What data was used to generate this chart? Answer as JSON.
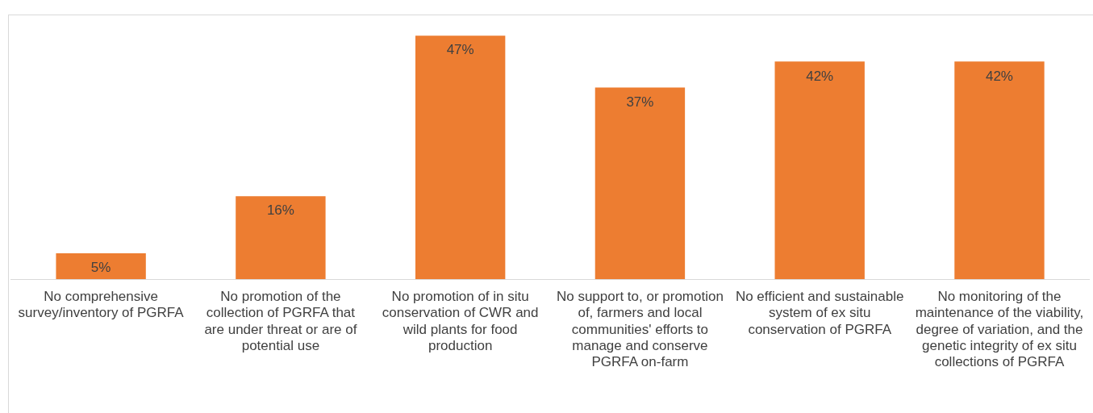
{
  "chart_data": {
    "type": "bar",
    "categories": [
      "No comprehensive survey/inventory of PGRFA",
      "No promotion of the collection of PGRFA that are under threat or are of potential use",
      "No promotion of in situ conservation of CWR and wild plants for food production",
      "No support to, or promotion of, farmers and local communities' efforts to manage and conserve PGRFA on-farm",
      "No efficient and sustainable system of ex situ conservation of PGRFA",
      "No monitoring of the maintenance of the viability, degree of variation, and the genetic integrity of ex situ collections of PGRFA"
    ],
    "values": [
      5,
      16,
      47,
      37,
      42,
      42
    ],
    "value_labels": [
      "5%",
      "16%",
      "47%",
      "37%",
      "42%",
      "42%"
    ],
    "color": "#ed7d31",
    "legend": false,
    "grid": false
  }
}
